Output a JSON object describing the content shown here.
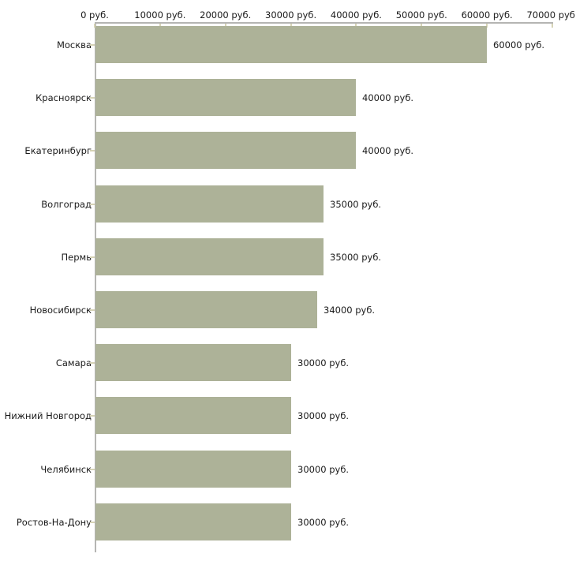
{
  "chart_data": {
    "type": "bar",
    "orientation": "horizontal",
    "title": "",
    "categories": [
      "Москва",
      "Красноярск",
      "Екатеринбург",
      "Волгоград",
      "Пермь",
      "Новосибирск",
      "Самара",
      "Нижний Новгород",
      "Челябинск",
      "Ростов-На-Дону"
    ],
    "values": [
      60000,
      40000,
      40000,
      35000,
      35000,
      34000,
      30000,
      30000,
      30000,
      30000
    ],
    "value_labels": [
      "60000 руб.",
      "40000 руб.",
      "40000 руб.",
      "35000 руб.",
      "35000 руб.",
      "34000 руб.",
      "30000 руб.",
      "30000 руб.",
      "30000 руб.",
      "30000 руб."
    ],
    "x_tick_labels": [
      "0 руб.",
      "10000 руб.",
      "20000 руб.",
      "30000 руб.",
      "40000 руб.",
      "50000 руб.",
      "60000 руб.",
      "70000 руб."
    ],
    "xlim": [
      0,
      70000
    ],
    "x_tick_step": 10000,
    "grid": false,
    "legend": false,
    "colors": {
      "bar": "#adb298",
      "axis": "#b5b5b3",
      "tick": "#d6d3b6",
      "text": "#1a1a1a",
      "background": "#ffffff"
    }
  }
}
